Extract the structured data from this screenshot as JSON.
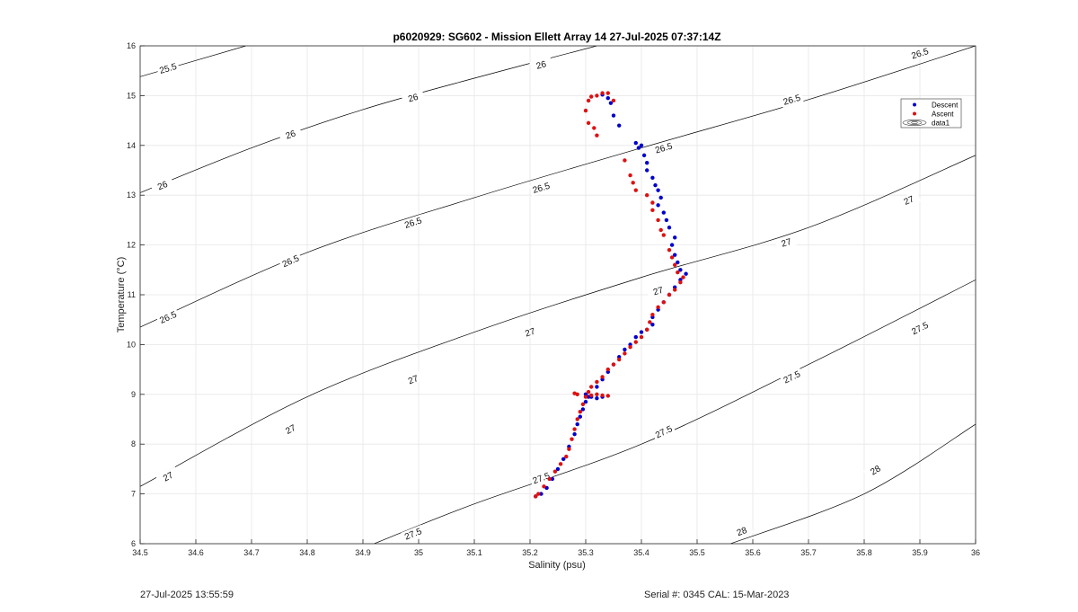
{
  "footer": {
    "timestamp": "27-Jul-2025 13:55:59",
    "serial": "Serial #: 0345  CAL: 15-Mar-2023"
  },
  "chart_data": {
    "type": "scatter",
    "title": "p6020929: SG602 - Mission Ellett Array 14 27-Jul-2025 07:37:14Z",
    "xlabel": "Salinity (psu)",
    "ylabel": "Temperature (°C)",
    "xlim": [
      34.5,
      36
    ],
    "ylim": [
      6,
      16
    ],
    "xticks": [
      34.5,
      34.6,
      34.7,
      34.8,
      34.9,
      35,
      35.1,
      35.2,
      35.3,
      35.4,
      35.5,
      35.6,
      35.7,
      35.8,
      35.9,
      36
    ],
    "yticks": [
      6,
      7,
      8,
      9,
      10,
      11,
      12,
      13,
      14,
      15,
      16
    ],
    "grid": true,
    "legend": {
      "position": "top-right",
      "entries": [
        "Descent",
        "Ascent",
        "data1"
      ]
    },
    "colors": {
      "descent": "#0000cc",
      "ascent": "#dd1111",
      "contour": "#000000",
      "grid": "#e6e6e6"
    },
    "contours": [
      {
        "level": "25.5",
        "points": [
          [
            34.5,
            15.38
          ],
          [
            34.69,
            16.0
          ]
        ],
        "labels": [
          [
            34.55,
            15.55
          ]
        ]
      },
      {
        "level": "26",
        "points": [
          [
            34.5,
            13.05
          ],
          [
            34.7,
            13.95
          ],
          [
            34.9,
            14.72
          ],
          [
            35.1,
            15.35
          ],
          [
            35.32,
            16.0
          ]
        ],
        "labels": [
          [
            34.54,
            13.2
          ],
          [
            34.77,
            14.22
          ],
          [
            34.99,
            14.96
          ],
          [
            35.22,
            15.62
          ]
        ]
      },
      {
        "level": "26.5",
        "points": [
          [
            34.5,
            10.35
          ],
          [
            34.8,
            11.85
          ],
          [
            35.1,
            12.95
          ],
          [
            35.4,
            13.95
          ],
          [
            35.7,
            14.92
          ],
          [
            36.0,
            16.0
          ]
        ],
        "labels": [
          [
            34.55,
            10.55
          ],
          [
            34.77,
            11.68
          ],
          [
            34.99,
            12.45
          ],
          [
            35.22,
            13.15
          ],
          [
            35.44,
            13.95
          ],
          [
            35.67,
            14.92
          ],
          [
            35.9,
            15.85
          ]
        ]
      },
      {
        "level": "27",
        "points": [
          [
            34.5,
            7.15
          ],
          [
            34.8,
            8.95
          ],
          [
            35.1,
            10.25
          ],
          [
            35.4,
            11.35
          ],
          [
            35.7,
            12.35
          ],
          [
            36.0,
            13.8
          ]
        ],
        "labels": [
          [
            34.55,
            7.35
          ],
          [
            34.77,
            8.3
          ],
          [
            34.99,
            9.3
          ],
          [
            35.2,
            10.25
          ],
          [
            35.43,
            11.08
          ],
          [
            35.66,
            12.05
          ],
          [
            35.88,
            12.9
          ]
        ]
      },
      {
        "level": "27.5",
        "points": [
          [
            34.92,
            6.0
          ],
          [
            35.1,
            6.8
          ],
          [
            35.4,
            8.0
          ],
          [
            35.7,
            9.6
          ],
          [
            36.0,
            11.3
          ]
        ],
        "labels": [
          [
            34.99,
            6.2
          ],
          [
            35.22,
            7.32
          ],
          [
            35.44,
            8.25
          ],
          [
            35.67,
            9.35
          ],
          [
            35.9,
            10.33
          ]
        ]
      },
      {
        "level": "28",
        "points": [
          [
            35.56,
            6.0
          ],
          [
            35.8,
            7.0
          ],
          [
            36.0,
            8.4
          ]
        ],
        "labels": [
          [
            35.58,
            6.25
          ],
          [
            35.82,
            7.48
          ]
        ]
      }
    ],
    "series": [
      {
        "name": "Descent",
        "points": [
          [
            35.21,
            6.95
          ],
          [
            35.22,
            7.0
          ],
          [
            35.23,
            7.12
          ],
          [
            35.24,
            7.3
          ],
          [
            35.25,
            7.5
          ],
          [
            35.26,
            7.7
          ],
          [
            35.27,
            7.95
          ],
          [
            35.28,
            8.2
          ],
          [
            35.285,
            8.4
          ],
          [
            35.29,
            8.55
          ],
          [
            35.295,
            8.7
          ],
          [
            35.3,
            8.85
          ],
          [
            35.305,
            8.95
          ],
          [
            35.3,
            9.0
          ],
          [
            35.31,
            8.95
          ],
          [
            35.32,
            8.92
          ],
          [
            35.33,
            8.95
          ],
          [
            35.32,
            9.15
          ],
          [
            35.33,
            9.3
          ],
          [
            35.34,
            9.45
          ],
          [
            35.35,
            9.6
          ],
          [
            35.36,
            9.75
          ],
          [
            35.37,
            9.9
          ],
          [
            35.38,
            10.0
          ],
          [
            35.39,
            10.15
          ],
          [
            35.4,
            10.25
          ],
          [
            35.41,
            10.3
          ],
          [
            35.42,
            10.4
          ],
          [
            35.42,
            10.55
          ],
          [
            35.43,
            10.7
          ],
          [
            35.44,
            10.85
          ],
          [
            35.45,
            11.0
          ],
          [
            35.46,
            11.15
          ],
          [
            35.47,
            11.3
          ],
          [
            35.48,
            11.42
          ],
          [
            35.47,
            11.5
          ],
          [
            35.465,
            11.65
          ],
          [
            35.46,
            11.8
          ],
          [
            35.455,
            12.0
          ],
          [
            35.46,
            12.15
          ],
          [
            35.45,
            12.35
          ],
          [
            35.445,
            12.5
          ],
          [
            35.44,
            12.65
          ],
          [
            35.43,
            12.8
          ],
          [
            35.435,
            12.95
          ],
          [
            35.43,
            13.1
          ],
          [
            35.425,
            13.2
          ],
          [
            35.42,
            13.35
          ],
          [
            35.41,
            13.5
          ],
          [
            35.41,
            13.65
          ],
          [
            35.405,
            13.8
          ],
          [
            35.4,
            14.0
          ],
          [
            35.395,
            13.95
          ],
          [
            35.39,
            14.05
          ],
          [
            35.36,
            14.4
          ],
          [
            35.35,
            14.6
          ],
          [
            35.345,
            14.85
          ],
          [
            35.34,
            14.95
          ],
          [
            35.33,
            15.02
          ]
        ]
      },
      {
        "name": "Ascent",
        "points": [
          [
            35.21,
            6.95
          ],
          [
            35.215,
            7.0
          ],
          [
            35.225,
            7.15
          ],
          [
            35.235,
            7.3
          ],
          [
            35.245,
            7.45
          ],
          [
            35.255,
            7.6
          ],
          [
            35.265,
            7.75
          ],
          [
            35.27,
            7.9
          ],
          [
            35.275,
            8.1
          ],
          [
            35.28,
            8.3
          ],
          [
            35.285,
            8.5
          ],
          [
            35.29,
            8.65
          ],
          [
            35.295,
            8.8
          ],
          [
            35.3,
            8.95
          ],
          [
            35.285,
            9.0
          ],
          [
            35.28,
            9.02
          ],
          [
            35.31,
            8.98
          ],
          [
            35.32,
            9.0
          ],
          [
            35.33,
            8.98
          ],
          [
            35.34,
            8.97
          ],
          [
            35.305,
            9.05
          ],
          [
            35.31,
            9.15
          ],
          [
            35.32,
            9.25
          ],
          [
            35.33,
            9.35
          ],
          [
            35.34,
            9.5
          ],
          [
            35.35,
            9.6
          ],
          [
            35.36,
            9.7
          ],
          [
            35.37,
            9.82
          ],
          [
            35.38,
            9.95
          ],
          [
            35.39,
            10.05
          ],
          [
            35.4,
            10.15
          ],
          [
            35.41,
            10.3
          ],
          [
            35.415,
            10.45
          ],
          [
            35.42,
            10.6
          ],
          [
            35.43,
            10.75
          ],
          [
            35.44,
            10.85
          ],
          [
            35.45,
            11.0
          ],
          [
            35.46,
            11.1
          ],
          [
            35.47,
            11.25
          ],
          [
            35.475,
            11.35
          ],
          [
            35.465,
            11.45
          ],
          [
            35.46,
            11.6
          ],
          [
            35.455,
            11.75
          ],
          [
            35.45,
            11.9
          ],
          [
            35.44,
            12.2
          ],
          [
            35.435,
            12.3
          ],
          [
            35.43,
            12.5
          ],
          [
            35.42,
            12.7
          ],
          [
            35.42,
            12.85
          ],
          [
            35.41,
            13.0
          ],
          [
            35.39,
            13.1
          ],
          [
            35.385,
            13.25
          ],
          [
            35.38,
            13.4
          ],
          [
            35.37,
            13.7
          ],
          [
            35.32,
            14.2
          ],
          [
            35.315,
            14.35
          ],
          [
            35.305,
            14.45
          ],
          [
            35.3,
            14.7
          ],
          [
            35.305,
            14.9
          ],
          [
            35.31,
            14.98
          ],
          [
            35.32,
            15.0
          ],
          [
            35.33,
            15.05
          ],
          [
            35.34,
            15.05
          ],
          [
            35.35,
            14.9
          ]
        ]
      }
    ]
  }
}
